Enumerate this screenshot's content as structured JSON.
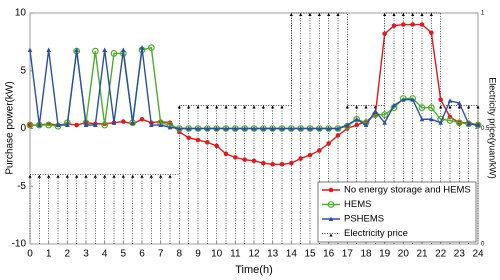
{
  "chart_data": {
    "type": "line",
    "xlabel": "Time(h)",
    "ylabel": "Purchase power(kW)",
    "y2label": "Electricity price(yuan/kW)",
    "ylabel_color": "#e0b000",
    "y2label_color": "#c0392b",
    "xlim": [
      0,
      24
    ],
    "xticks": [
      0,
      1,
      2,
      3,
      4,
      5,
      6,
      7,
      8,
      9,
      10,
      11,
      12,
      13,
      14,
      15,
      16,
      17,
      18,
      19,
      20,
      21,
      22,
      23,
      24
    ],
    "ylim": [
      -10,
      10
    ],
    "yticks": [
      -10,
      -5,
      0,
      5,
      10
    ],
    "y2lim": [
      0,
      1
    ],
    "y2ticks": [
      0,
      0.5,
      1
    ],
    "legend": "lower right",
    "x": [
      0,
      0.5,
      1,
      1.5,
      2,
      2.5,
      3,
      3.5,
      4,
      4.5,
      5,
      5.5,
      6,
      6.5,
      7,
      7.5,
      8,
      8.5,
      9,
      9.5,
      10,
      10.5,
      11,
      11.5,
      12,
      12.5,
      13,
      13.5,
      14,
      14.5,
      15,
      15.5,
      16,
      16.5,
      17,
      17.5,
      18,
      18.5,
      19,
      19.5,
      20,
      20.5,
      21,
      21.5,
      22,
      22.5,
      23,
      23.5,
      24
    ],
    "series": [
      {
        "name": "No energy storage and HEMS",
        "color": "#e0191f",
        "marker": "circle",
        "values": [
          0.3,
          0.3,
          0.4,
          0.3,
          0.4,
          0.3,
          0.5,
          0.4,
          0.4,
          0.5,
          0.6,
          0.4,
          0.8,
          0.5,
          0.6,
          0.5,
          -0.3,
          -0.8,
          -1,
          -1.2,
          -1.5,
          -2.2,
          -2.5,
          -2.7,
          -2.8,
          -3,
          -3.1,
          -3.1,
          -3,
          -2.6,
          -2.3,
          -1.9,
          -1.3,
          -0.6,
          0,
          0.3,
          0.6,
          1.2,
          8.2,
          8.9,
          9,
          9,
          9,
          8.3,
          2.5,
          1,
          0.5,
          0.5,
          0.3
        ]
      },
      {
        "name": "HEMS",
        "color": "#4caf2a",
        "marker": "open-circle",
        "values": [
          0.3,
          0.3,
          0.3,
          0.2,
          0.5,
          6.7,
          0.5,
          6.7,
          0.3,
          6.5,
          6.5,
          0.5,
          6.8,
          7,
          0.5,
          0.3,
          0,
          0,
          0,
          0,
          0,
          0,
          0,
          0,
          0,
          0,
          0,
          0,
          0,
          0,
          0,
          0,
          0,
          0,
          0.2,
          0.8,
          0.5,
          1.2,
          1.2,
          1.8,
          2.6,
          2.6,
          1.8,
          1.8,
          0.8,
          0.7,
          0.5,
          0.4,
          0.3
        ]
      },
      {
        "name": "PSHEMS",
        "color": "#2b4fa8",
        "marker": "triangle",
        "values": [
          6.8,
          0.3,
          6.8,
          0.3,
          0.3,
          6.8,
          0.3,
          0.3,
          6.8,
          0.5,
          6.8,
          0.5,
          7,
          0.3,
          0.3,
          0.1,
          0,
          0,
          0,
          0,
          0,
          0,
          0,
          0,
          0,
          0,
          0,
          0,
          0,
          0,
          0,
          0,
          0,
          0,
          0.3,
          0.8,
          0.3,
          1.5,
          0.5,
          2,
          2.5,
          2.5,
          0.8,
          0.8,
          0.5,
          2.4,
          2.2,
          0.4,
          0.3
        ]
      },
      {
        "name": "Electricity price",
        "color": "#000000",
        "marker": "arrow",
        "axis": "y2",
        "values": [
          0.3,
          0.3,
          0.3,
          0.3,
          0.3,
          0.3,
          0.3,
          0.3,
          0.3,
          0.3,
          0.3,
          0.3,
          0.3,
          0.3,
          0.3,
          0.3,
          0.6,
          0.6,
          0.6,
          0.6,
          0.6,
          0.6,
          0.6,
          0.6,
          0.6,
          0.6,
          0.6,
          0.6,
          1,
          1,
          1,
          1,
          1,
          1,
          0.6,
          0.6,
          0.6,
          0.6,
          1,
          1,
          1,
          1,
          1,
          1,
          0.6,
          0.6,
          0.6,
          0.6,
          0.6
        ]
      }
    ]
  }
}
